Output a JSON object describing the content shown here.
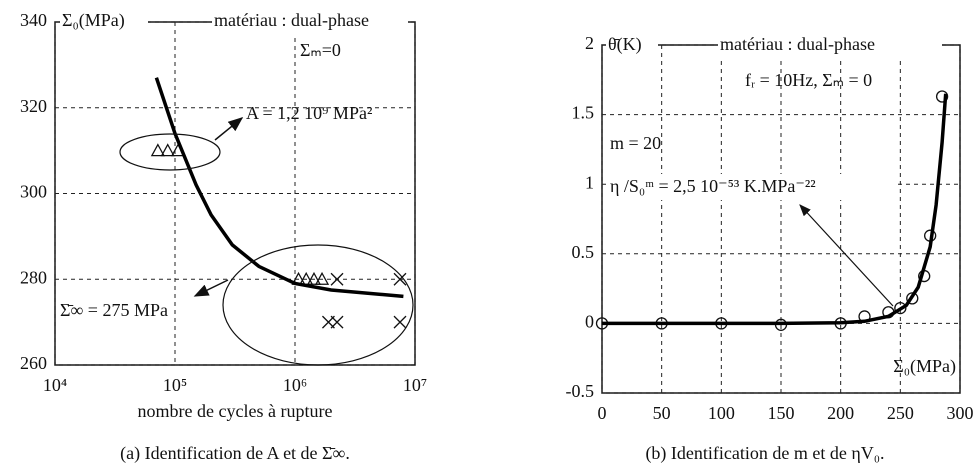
{
  "chart_data": [
    {
      "type": "scatter",
      "xscale": "log",
      "grid": true,
      "xlim": [
        10000,
        10000000
      ],
      "ylim": [
        260,
        340
      ],
      "xticks": [
        {
          "value": 10000,
          "label": "10⁴"
        },
        {
          "value": 100000,
          "label": "10⁵"
        },
        {
          "value": 1000000,
          "label": "10⁶"
        },
        {
          "value": 10000000,
          "label": "10⁷"
        }
      ],
      "yticks": [
        260,
        280,
        300,
        320,
        340
      ],
      "ylabel": "Σ₀(MPa)",
      "xlabel": "nombre de cycles à rupture",
      "annotations": [
        "matériau : dual-phase",
        "Σₘ=0",
        "A = 1,2 10⁹ MPa²",
        "Σ̄∞ = 275 MPa"
      ],
      "caption": "(a) Identification de A et de Σ̄∞.",
      "series": [
        {
          "marker": "triangle",
          "color": "#111111",
          "x": [
            72000,
            87000,
            106000,
            1070000,
            1240000,
            1440000,
            1680000
          ],
          "values": [
            310,
            310,
            310,
            280,
            280,
            280,
            280
          ]
        },
        {
          "marker": "cross",
          "color": "#111111",
          "x": [
            2240000,
            7500000,
            1900000,
            2240000,
            7500000
          ],
          "values": [
            280,
            280,
            270,
            270,
            270
          ]
        },
        {
          "marker": "none",
          "color": "#000000",
          "x": [
            70000,
            100000,
            150000,
            200000,
            300000,
            500000,
            1000000,
            2000000,
            8000000
          ],
          "values": [
            327,
            314,
            302,
            295,
            288,
            283,
            279,
            277.5,
            276
          ]
        }
      ]
    },
    {
      "type": "scatter",
      "grid": true,
      "xlim": [
        0,
        300
      ],
      "ylim": [
        -0.5,
        2
      ],
      "xticks": [
        0,
        50,
        100,
        150,
        200,
        250,
        300
      ],
      "yticks": [
        -0.5,
        0,
        0.5,
        1,
        1.5,
        2
      ],
      "ylabel": "θ̄(K)",
      "xlabel": "Σ₀(MPa)",
      "annotations": [
        "matériau : dual-phase",
        "fᵣ = 10Hz, Σₘ = 0",
        "m = 20",
        "η /S₀ᵐ = 2,5 10⁻⁵³ K.MPa⁻²²"
      ],
      "caption": "(b) Identification de m et de ηV₀.",
      "series": [
        {
          "marker": "circle",
          "color": "#111111",
          "x": [
            0,
            50,
            100,
            150,
            200,
            220,
            240,
            250,
            260,
            270,
            275,
            285
          ],
          "values": [
            0,
            0,
            0,
            -0.01,
            0,
            0.05,
            0.08,
            0.11,
            0.18,
            0.34,
            0.63,
            1.63
          ]
        },
        {
          "marker": "none",
          "color": "#000000",
          "x": [
            0,
            50,
            100,
            150,
            200,
            220,
            240,
            255,
            265,
            275,
            280,
            285,
            288
          ],
          "values": [
            0,
            0,
            0,
            0,
            0.005,
            0.015,
            0.05,
            0.13,
            0.26,
            0.55,
            0.85,
            1.3,
            1.65
          ]
        }
      ]
    }
  ]
}
